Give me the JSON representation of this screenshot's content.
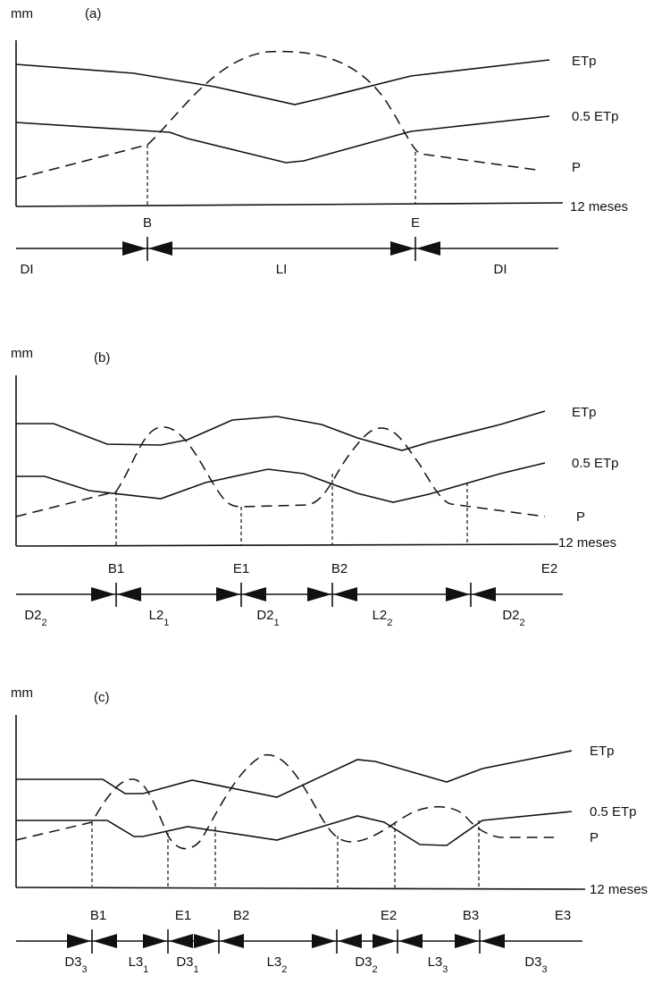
{
  "panels": [
    {
      "id": "a",
      "y_unit": "mm",
      "tag": "(a)",
      "curve_labels": {
        "etp": "ETp",
        "half_etp": "0.5 ETp",
        "p": "P"
      },
      "x_label": "12 meses",
      "markers": [
        "B",
        "E"
      ],
      "periods": [
        {
          "main": "DI",
          "sub": ""
        },
        {
          "main": "LI",
          "sub": ""
        },
        {
          "main": "DI",
          "sub": ""
        }
      ]
    },
    {
      "id": "b",
      "y_unit": "mm",
      "tag": "(b)",
      "curve_labels": {
        "etp": "ETp",
        "half_etp": "0.5 ETp",
        "p": "P"
      },
      "x_label": "12 meses",
      "markers": [
        "B1",
        "E1",
        "B2",
        "E2"
      ],
      "periods": [
        {
          "main": "D2",
          "sub": "2"
        },
        {
          "main": "L2",
          "sub": "1"
        },
        {
          "main": "D2",
          "sub": "1"
        },
        {
          "main": "L2",
          "sub": "2"
        },
        {
          "main": "D2",
          "sub": "2"
        }
      ]
    },
    {
      "id": "c",
      "y_unit": "mm",
      "tag": "(c)",
      "curve_labels": {
        "etp": "ETp",
        "half_etp": "0.5 ETp",
        "p": "P"
      },
      "x_label": "12 meses",
      "markers": [
        "B1",
        "E1",
        "B2",
        "E2",
        "B3",
        "E3"
      ],
      "periods": [
        {
          "main": "D3",
          "sub": "3"
        },
        {
          "main": "L3",
          "sub": "1"
        },
        {
          "main": "D3",
          "sub": "1"
        },
        {
          "main": "L3",
          "sub": "2"
        },
        {
          "main": "D3",
          "sub": "2"
        },
        {
          "main": "L3",
          "sub": "3"
        },
        {
          "main": "D3",
          "sub": "3"
        }
      ]
    }
  ]
}
